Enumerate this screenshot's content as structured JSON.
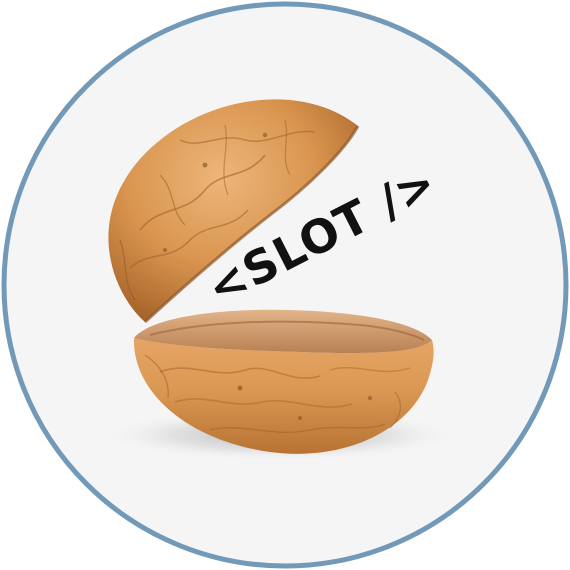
{
  "logo": {
    "text": "<SLOT />",
    "ring_color": "#7299B8",
    "background_color": "#F5F5F5",
    "shell_color": "#D9954F",
    "shell_dark_color": "#A8652A",
    "shell_light_color": "#F2C089",
    "shadow_color": "#C9C9C9"
  }
}
